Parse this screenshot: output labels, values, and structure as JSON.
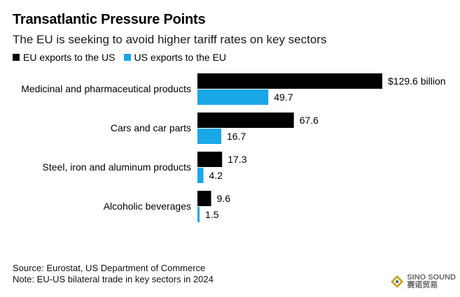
{
  "header": {
    "title": "Transatlantic Pressure Points",
    "subtitle": "The EU is seeking to avoid higher tariff rates on key sectors"
  },
  "legend": [
    {
      "label": "EU exports to the US",
      "color": "#000000"
    },
    {
      "label": "US exports to the EU",
      "color": "#1aa7e8"
    }
  ],
  "chart_data": {
    "type": "bar",
    "orientation": "horizontal",
    "title": "Transatlantic Pressure Points",
    "subtitle": "The EU is seeking to avoid higher tariff rates on key sectors",
    "categories": [
      "Medicinal and pharmaceutical products",
      "Cars and car parts",
      "Steel, iron and aluminum products",
      "Alcoholic beverages"
    ],
    "series": [
      {
        "name": "EU exports to the US",
        "color": "#000000",
        "values": [
          129.6,
          67.6,
          17.3,
          9.6
        ]
      },
      {
        "name": "US exports to the EU",
        "color": "#1aa7e8",
        "values": [
          49.7,
          16.7,
          4.2,
          1.5
        ]
      }
    ],
    "data_labels": [
      [
        "$129.6 billion",
        "67.6",
        "17.3",
        "9.6"
      ],
      [
        "49.7",
        "16.7",
        "4.2",
        "1.5"
      ]
    ],
    "xlim": [
      0,
      129.6
    ],
    "xlabel": "",
    "ylabel": "",
    "grid": false,
    "legend_position": "top-left"
  },
  "footer": {
    "source": "Source: Eurostat, US Department of Commerce",
    "note": "Note: EU-US bilateral trade in key sectors in 2024"
  },
  "watermark": {
    "line1": "SINO SOUND",
    "line2": "赛诺贸易"
  }
}
